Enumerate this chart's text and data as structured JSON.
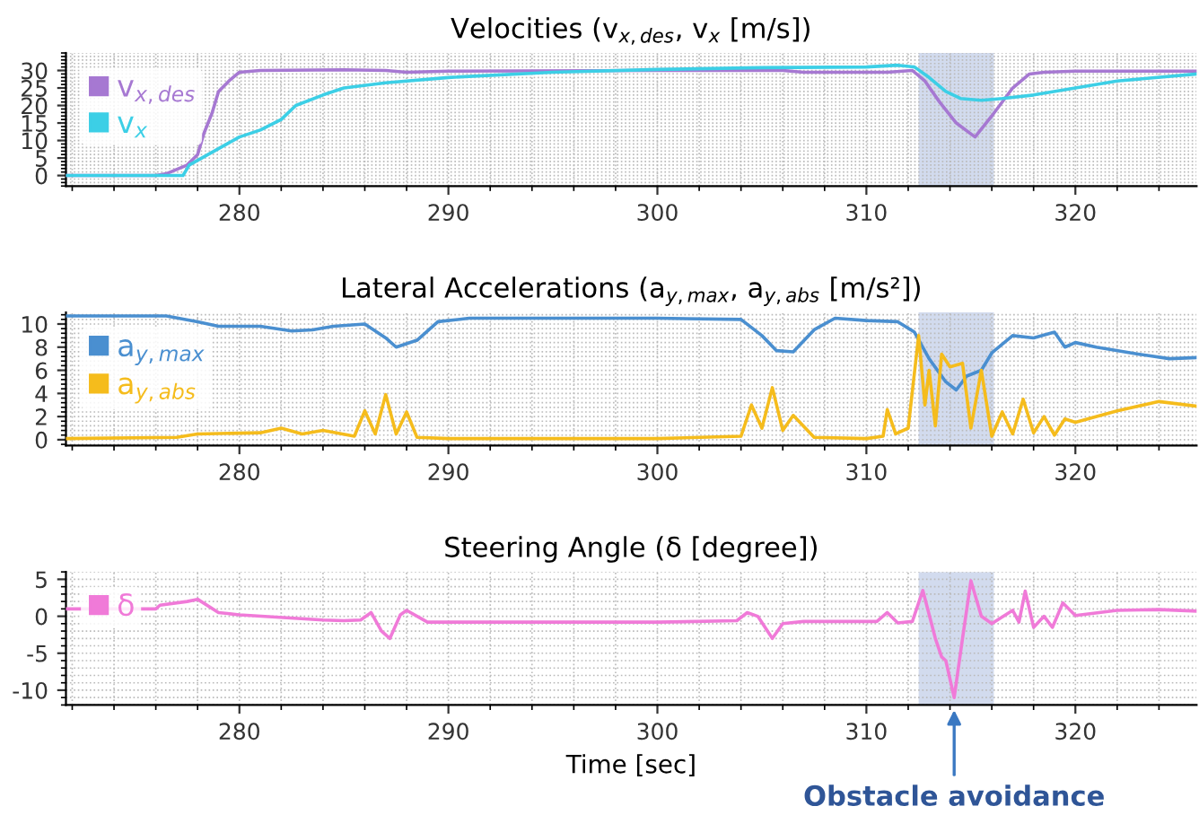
{
  "chart_data": [
    {
      "type": "line",
      "title": "Velocities (v$_{x,des}$, v$_{x}$ [m/s])",
      "xlim": [
        271.7,
        325.8
      ],
      "xticks": [
        280,
        290,
        300,
        310,
        320
      ],
      "ylim": [
        -3,
        35
      ],
      "yticks": [
        0,
        5,
        10,
        15,
        20,
        25,
        30
      ],
      "grid": true,
      "legend": "top left",
      "marker": "none",
      "line_style": "solid",
      "bands": [
        {
          "axis": "x",
          "from": 312.5,
          "to": 316.1,
          "color": "#c3cfe8"
        }
      ],
      "series": [
        {
          "name": "v$_{x,des}$",
          "color": "#a678d2",
          "x": [
            271.7,
            276,
            276.5,
            277.5,
            278,
            278.3,
            278.7,
            279,
            279.5,
            280,
            281,
            285,
            287,
            288,
            290,
            300,
            306,
            307,
            311,
            312.2,
            312.8,
            313.5,
            314.3,
            315.2,
            316,
            317,
            317.8,
            318.5,
            320,
            325.8
          ],
          "values": [
            0,
            0,
            0.5,
            3,
            6,
            12,
            18,
            24,
            27,
            29.5,
            30,
            30.2,
            30,
            29.5,
            29.8,
            30,
            30,
            29.5,
            29.5,
            30,
            27,
            21,
            15,
            11,
            17,
            25,
            29,
            29.5,
            29.8,
            29.8
          ]
        },
        {
          "name": "v$_{x}$",
          "color": "#3ccfe6",
          "x": [
            271.7,
            276.3,
            277.3,
            277.6,
            278.5,
            280,
            281,
            282,
            282.7,
            284,
            285,
            287,
            290,
            295,
            300,
            305,
            310,
            311.5,
            312.3,
            313,
            313.8,
            314.5,
            315.5,
            316.5,
            318,
            320,
            322,
            325.8
          ],
          "values": [
            0,
            0,
            0,
            3,
            6,
            11,
            13,
            16,
            20,
            23,
            25,
            26.5,
            28,
            29.5,
            30.3,
            30.8,
            31,
            31.5,
            31,
            28,
            24,
            22,
            21.5,
            22,
            23,
            25,
            27,
            29
          ]
        }
      ]
    },
    {
      "type": "line",
      "title": "Lateral Accelerations (a$_{y,max}$, a$_{y,abs}$ [m/s²])",
      "xlim": [
        271.7,
        325.8
      ],
      "xticks": [
        280,
        290,
        300,
        310,
        320
      ],
      "ylim": [
        -0.5,
        11
      ],
      "yticks": [
        0,
        2,
        4,
        6,
        8,
        10
      ],
      "grid": true,
      "legend": "top left",
      "marker": "none",
      "line_style": "solid",
      "bands": [
        {
          "axis": "x",
          "from": 312.5,
          "to": 316.1,
          "color": "#c3cfe8"
        }
      ],
      "series": [
        {
          "name": "a$_{y,max}$",
          "color": "#4a8fd0",
          "x": [
            271.7,
            276.5,
            278,
            279,
            281,
            282.5,
            283.5,
            284.5,
            286,
            287,
            287.5,
            288.5,
            289.5,
            291,
            295,
            300,
            304,
            305,
            305.7,
            306.5,
            307.5,
            308.5,
            310,
            311.5,
            312.3,
            313,
            313.8,
            314.3,
            314.8,
            315.5,
            316,
            317,
            318,
            319,
            319.5,
            320,
            321,
            323,
            324.5,
            325.8
          ],
          "values": [
            10.7,
            10.7,
            10.2,
            9.8,
            9.8,
            9.4,
            9.5,
            9.8,
            10,
            8.8,
            8,
            8.6,
            10.2,
            10.5,
            10.5,
            10.5,
            10.4,
            9,
            7.7,
            7.6,
            9.5,
            10.5,
            10.3,
            10.2,
            9.3,
            7,
            5,
            4.3,
            5.5,
            6,
            7.5,
            9,
            8.8,
            9.3,
            8,
            8.4,
            8,
            7.4,
            7,
            7.1
          ]
        },
        {
          "name": "a$_{y,abs}$",
          "color": "#f5bc1c",
          "x": [
            271.7,
            277,
            278,
            281,
            282,
            283,
            284,
            285.5,
            286,
            286.5,
            287,
            287.5,
            288,
            288.5,
            290,
            300,
            304,
            304.5,
            305,
            305.5,
            306,
            306.5,
            307.5,
            310,
            310.8,
            311,
            311.4,
            312,
            312.5,
            312.8,
            313,
            313.3,
            313.6,
            314,
            314.6,
            315,
            315.5,
            316,
            316.5,
            317,
            317.5,
            318,
            318.5,
            319,
            319.5,
            320,
            322,
            324,
            325.8
          ],
          "values": [
            0.1,
            0.2,
            0.5,
            0.6,
            1,
            0.5,
            0.8,
            0.3,
            2.5,
            0.5,
            3.9,
            0.5,
            2.4,
            0.2,
            0.1,
            0.1,
            0.3,
            3,
            1,
            4.5,
            0.8,
            2.1,
            0.2,
            0.1,
            0.3,
            2.6,
            0.5,
            1,
            9,
            3,
            6,
            1.2,
            7.4,
            6.3,
            6.6,
            1,
            6,
            0.3,
            2.4,
            0.5,
            3.5,
            0.6,
            2,
            0.4,
            1.8,
            1.5,
            2.5,
            3.3,
            2.9
          ]
        }
      ]
    },
    {
      "type": "line",
      "title": "Steering Angle (δ [degree])",
      "xlabel": "Time [sec]",
      "xlim": [
        271.7,
        325.8
      ],
      "xticks": [
        280,
        290,
        300,
        310,
        320
      ],
      "ylim": [
        -12,
        6
      ],
      "yticks": [
        {
          "value": -10,
          "label": "-10"
        },
        {
          "value": -5,
          "label": "-5"
        },
        0,
        5
      ],
      "grid": true,
      "legend": "top left",
      "marker": "none",
      "line_style": "solid",
      "bands": [
        {
          "axis": "x",
          "from": 312.5,
          "to": 316.1,
          "color": "#c3cfe8"
        }
      ],
      "annotations": [
        {
          "text": "Obstacle avoidance",
          "x": 314.2,
          "y": -12
        }
      ],
      "series": [
        {
          "name": "δ",
          "color": "#f07ad8",
          "x": [
            271.7,
            276,
            276.2,
            277.5,
            278,
            279,
            280,
            284,
            285,
            285.8,
            286.3,
            286.8,
            287.2,
            287.7,
            288,
            289,
            300,
            303.8,
            304.3,
            304.8,
            305.5,
            306,
            307,
            310.5,
            311,
            311.5,
            312.2,
            312.7,
            313.3,
            313.6,
            313.8,
            314.2,
            314.6,
            315,
            315.5,
            316,
            317,
            317.3,
            317.6,
            318,
            318.5,
            318.9,
            319.4,
            320,
            322,
            324,
            325.8
          ],
          "values": [
            1,
            1,
            1.5,
            2,
            2.3,
            0.5,
            0.2,
            -0.5,
            -0.6,
            -0.5,
            0.5,
            -2,
            -3,
            0.2,
            0.8,
            -0.8,
            -0.8,
            -0.6,
            0.5,
            0,
            -3,
            -1,
            -0.7,
            -0.7,
            0.5,
            -0.9,
            -0.7,
            3.5,
            -3,
            -5.5,
            -6,
            -11,
            -3,
            4.8,
            0,
            -1,
            0.8,
            -0.8,
            3.4,
            -1.5,
            0,
            -1.5,
            1.8,
            0.1,
            0.8,
            0.9,
            0.7
          ]
        }
      ]
    }
  ]
}
